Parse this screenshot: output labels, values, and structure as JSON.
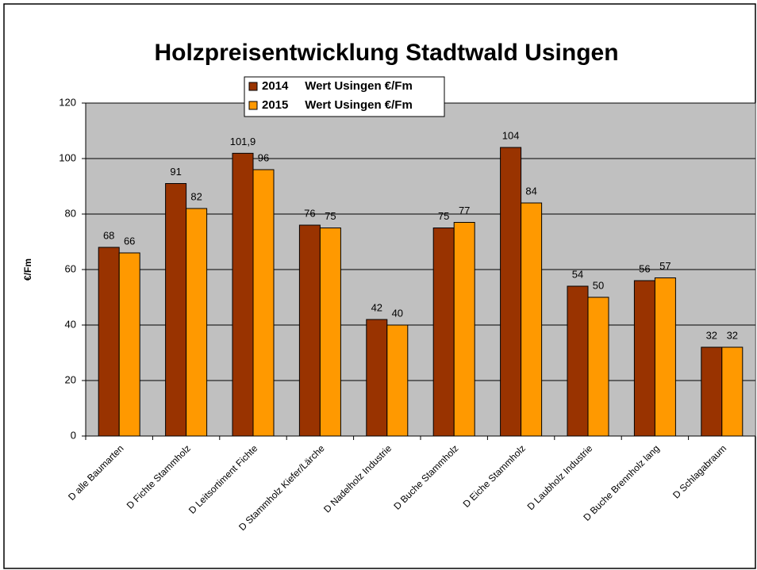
{
  "chart_data": {
    "type": "bar",
    "title": "Holzpreisentwicklung Stadtwald Usingen",
    "y_label": "€/Fm",
    "categories": [
      "D alle Baumarten",
      "D Fichte Stammholz",
      "D Leitsortiment Fichte",
      "D Stammholz Kiefer/Lärche",
      "D Nadelholz Industrie",
      "D Buche Stammholz",
      "D Eiche Stammholz",
      "D Laubholz Industrie",
      "D Buche Brennholz lang",
      "D Schlagabraum"
    ],
    "series": [
      {
        "name": "2014     Wert Usingen €/Fm",
        "color": "#993300",
        "values": [
          68,
          91,
          101.9,
          76,
          42,
          75,
          104,
          54,
          56,
          32
        ],
        "value_labels": [
          "68",
          "91",
          "101,9",
          "76",
          "42",
          "75",
          "104",
          "54",
          "56",
          "32"
        ]
      },
      {
        "name": "2015     Wert Usingen €/Fm",
        "color": "#ff9900",
        "values": [
          66,
          82,
          96,
          75,
          40,
          77,
          84,
          50,
          57,
          32
        ]
      }
    ],
    "ylim": [
      0,
      120
    ],
    "yticks": [
      0,
      20,
      40,
      60,
      80,
      100,
      120
    ],
    "grid": true
  }
}
